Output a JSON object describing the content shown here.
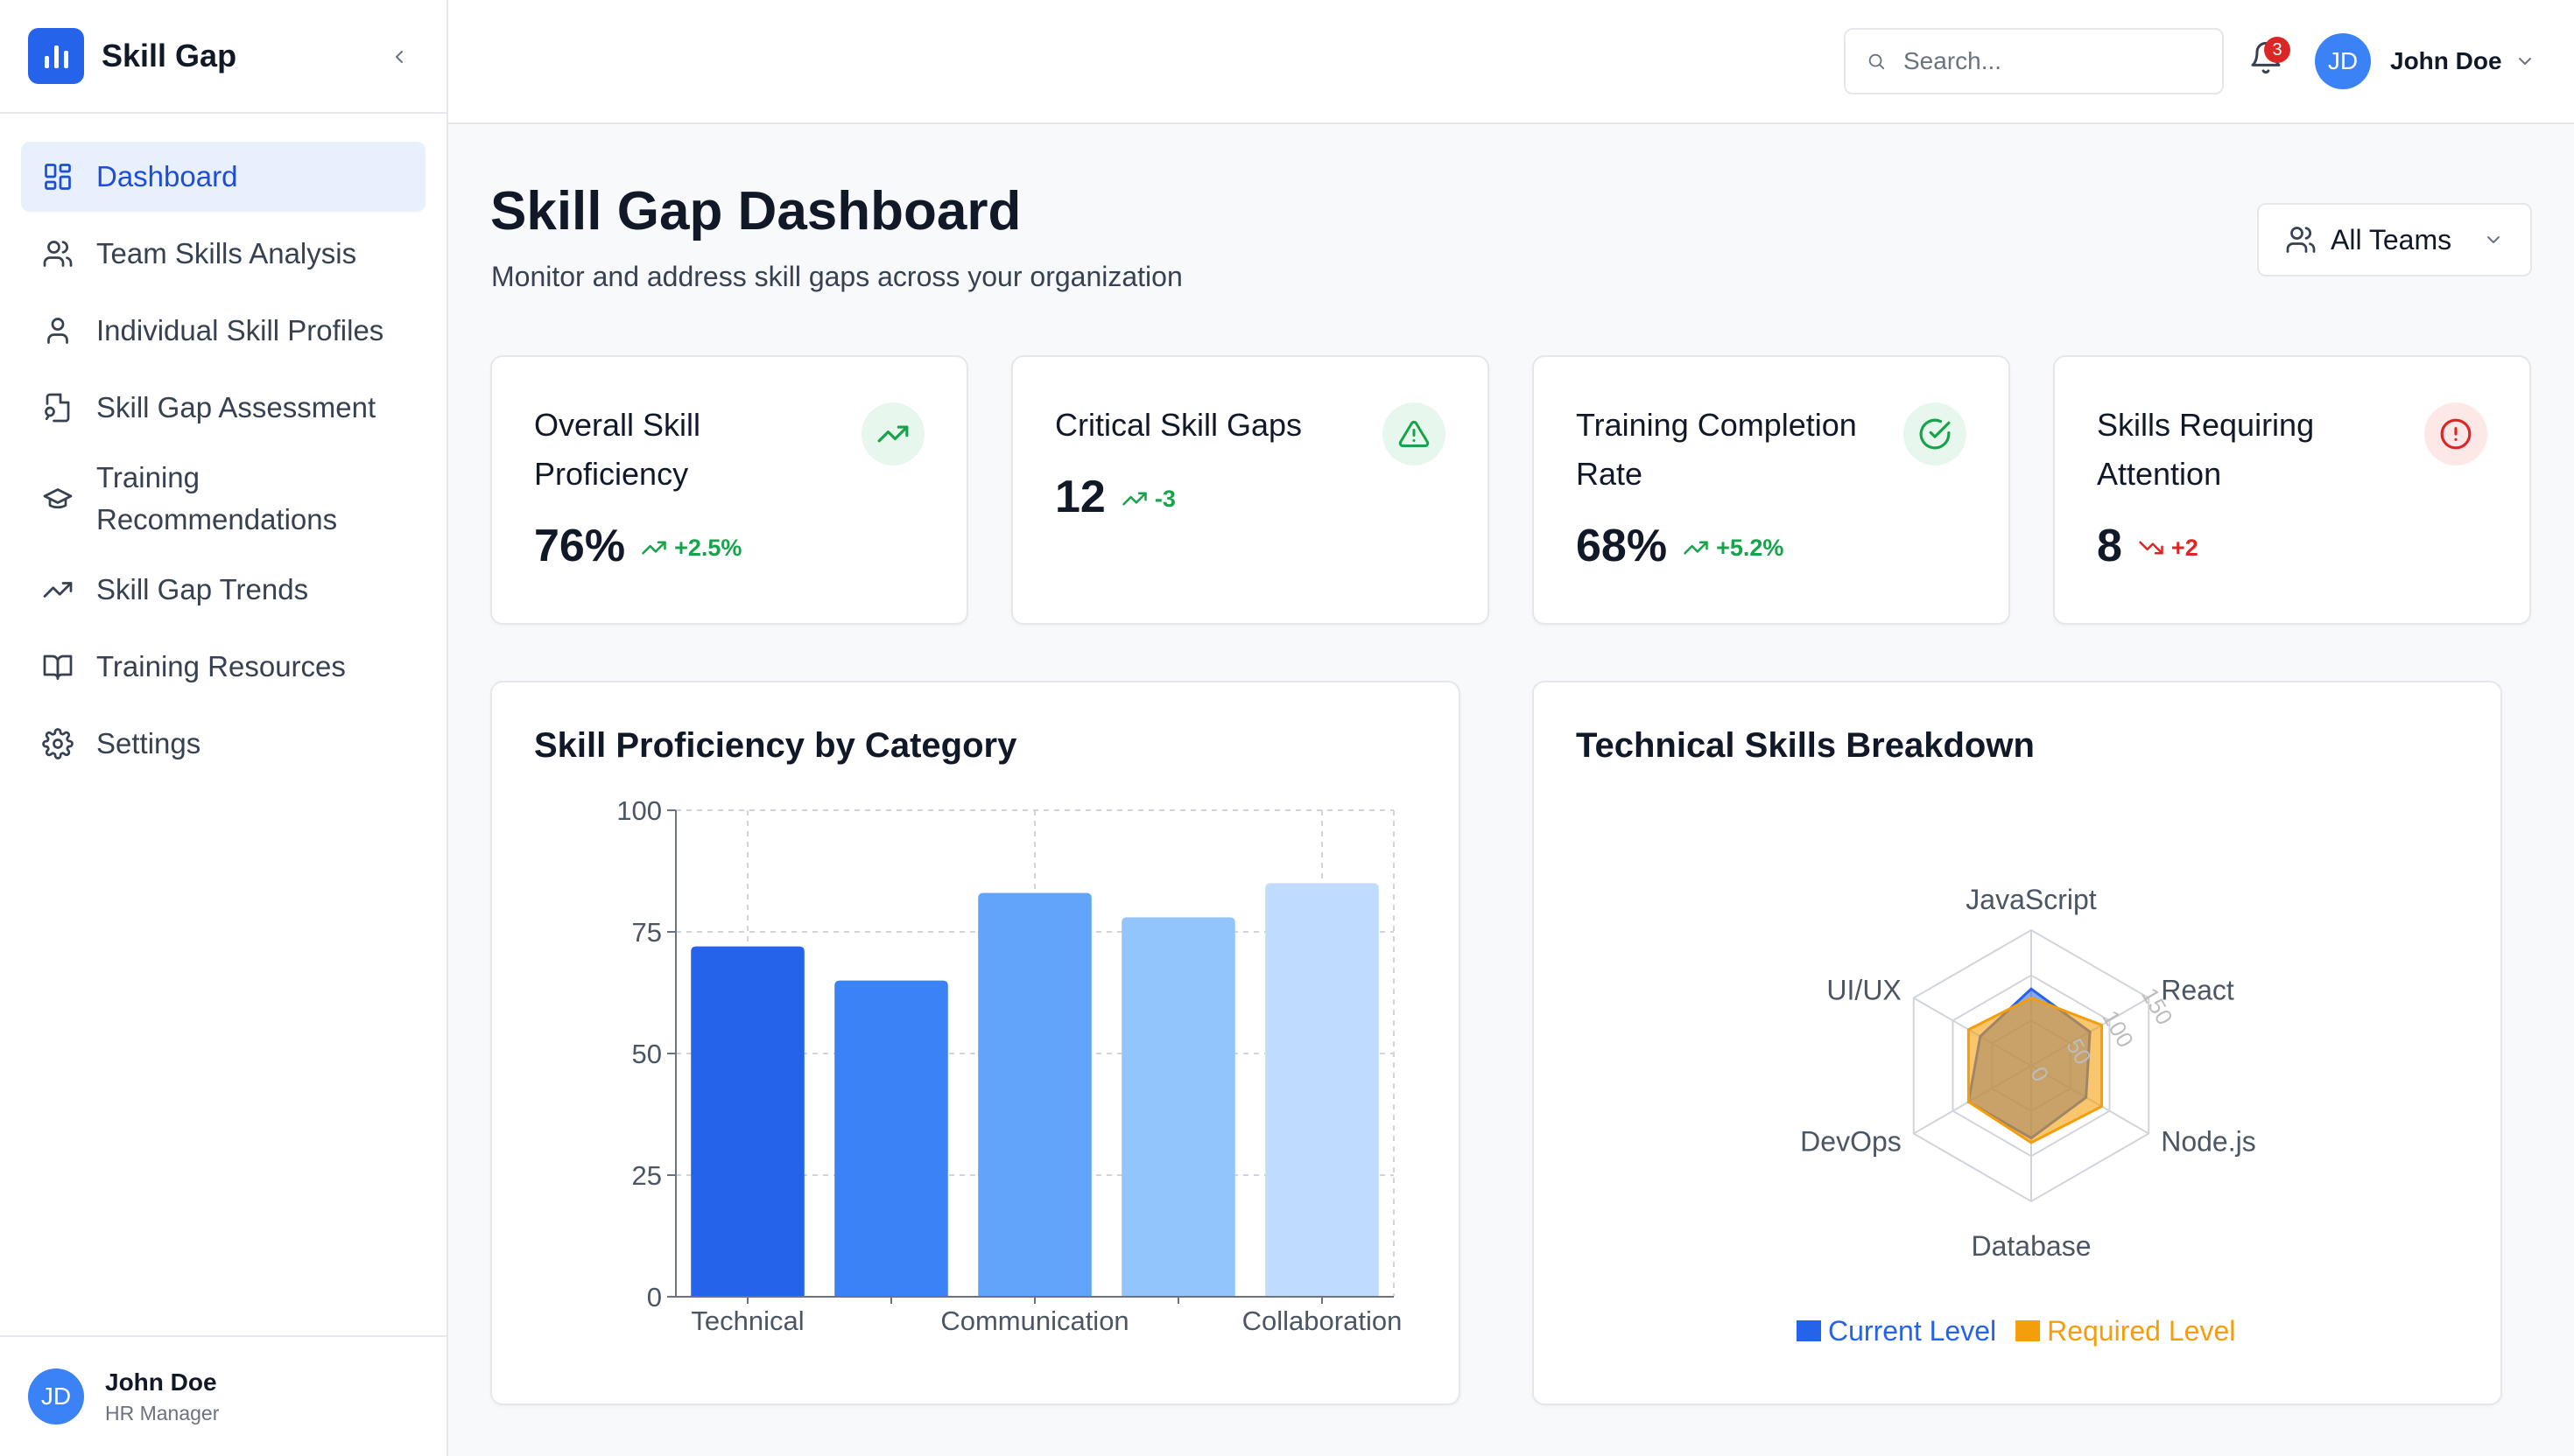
{
  "app": {
    "brand": "Skill Gap"
  },
  "sidebar": {
    "items": [
      {
        "label": "Dashboard",
        "icon": "dashboard-icon",
        "active": true
      },
      {
        "label": "Team Skills Analysis",
        "icon": "users-icon"
      },
      {
        "label": "Individual Skill Profiles",
        "icon": "user-icon"
      },
      {
        "label": "Skill Gap Assessment",
        "icon": "file-search-icon"
      },
      {
        "label": "Training Recommendations",
        "icon": "graduation-cap-icon"
      },
      {
        "label": "Skill Gap Trends",
        "icon": "trending-up-icon"
      },
      {
        "label": "Training Resources",
        "icon": "book-open-icon"
      },
      {
        "label": "Settings",
        "icon": "gear-icon"
      }
    ],
    "footer": {
      "initials": "JD",
      "name": "John Doe",
      "role": "HR Manager"
    }
  },
  "header": {
    "search_placeholder": "Search...",
    "notifications_count": "3",
    "user_initials": "JD",
    "user_name": "John Doe"
  },
  "main": {
    "title": "Skill Gap Dashboard",
    "subtitle": "Monitor and address skill gaps across your organization",
    "team_filter": "All Teams"
  },
  "stats": [
    {
      "title": "Overall Skill Proficiency",
      "value": "76%",
      "delta": "+2.5%",
      "trend": "up",
      "delta_color": "#16a34a",
      "icon": "trending-up-icon",
      "icon_color": "#16a34a",
      "icon_bg": "#e8f7ee"
    },
    {
      "title": "Critical Skill Gaps",
      "value": "12",
      "delta": "-3",
      "trend": "up",
      "delta_color": "#16a34a",
      "icon": "alert-triangle-icon",
      "icon_color": "#16a34a",
      "icon_bg": "#e8f7ee"
    },
    {
      "title": "Training Completion Rate",
      "value": "68%",
      "delta": "+5.2%",
      "trend": "up",
      "delta_color": "#16a34a",
      "icon": "check-circle-icon",
      "icon_color": "#16a34a",
      "icon_bg": "#e8f7ee"
    },
    {
      "title": "Skills Requiring Attention",
      "value": "8",
      "delta": "+2",
      "trend": "down",
      "delta_color": "#dc2626",
      "icon": "alert-circle-icon",
      "icon_color": "#dc2626",
      "icon_bg": "#fde8e8"
    }
  ],
  "panels": {
    "bar_title": "Skill Proficiency by Category",
    "radar_title": "Technical Skills Breakdown"
  },
  "chart_data": [
    {
      "type": "bar",
      "title": "Skill Proficiency by Category",
      "categories": [
        "Technical",
        "",
        "Communication",
        "",
        "Collaboration"
      ],
      "values": [
        72,
        65,
        83,
        78,
        85
      ],
      "colors": [
        "#2563eb",
        "#3b82f6",
        "#60a5fa",
        "#93c5fd",
        "#bfdbfe"
      ],
      "yticks": [
        "0",
        "25",
        "50",
        "75",
        "100"
      ],
      "ylim": [
        0,
        100
      ],
      "grid": true
    },
    {
      "type": "radar",
      "title": "Technical Skills Breakdown",
      "axes": [
        "JavaScript",
        "React",
        "Node.js",
        "Database",
        "DevOps",
        "UI/UX"
      ],
      "rlim": [
        0,
        150
      ],
      "rticks": [
        "0",
        "50",
        "100",
        "150"
      ],
      "series": [
        {
          "name": "Current Level",
          "color": "#2563eb",
          "values": [
            85,
            75,
            70,
            80,
            80,
            65
          ]
        },
        {
          "name": "Required Level",
          "color": "#f59e0b",
          "values": [
            75,
            90,
            90,
            85,
            80,
            80
          ]
        }
      ],
      "legend": "bottom"
    }
  ]
}
